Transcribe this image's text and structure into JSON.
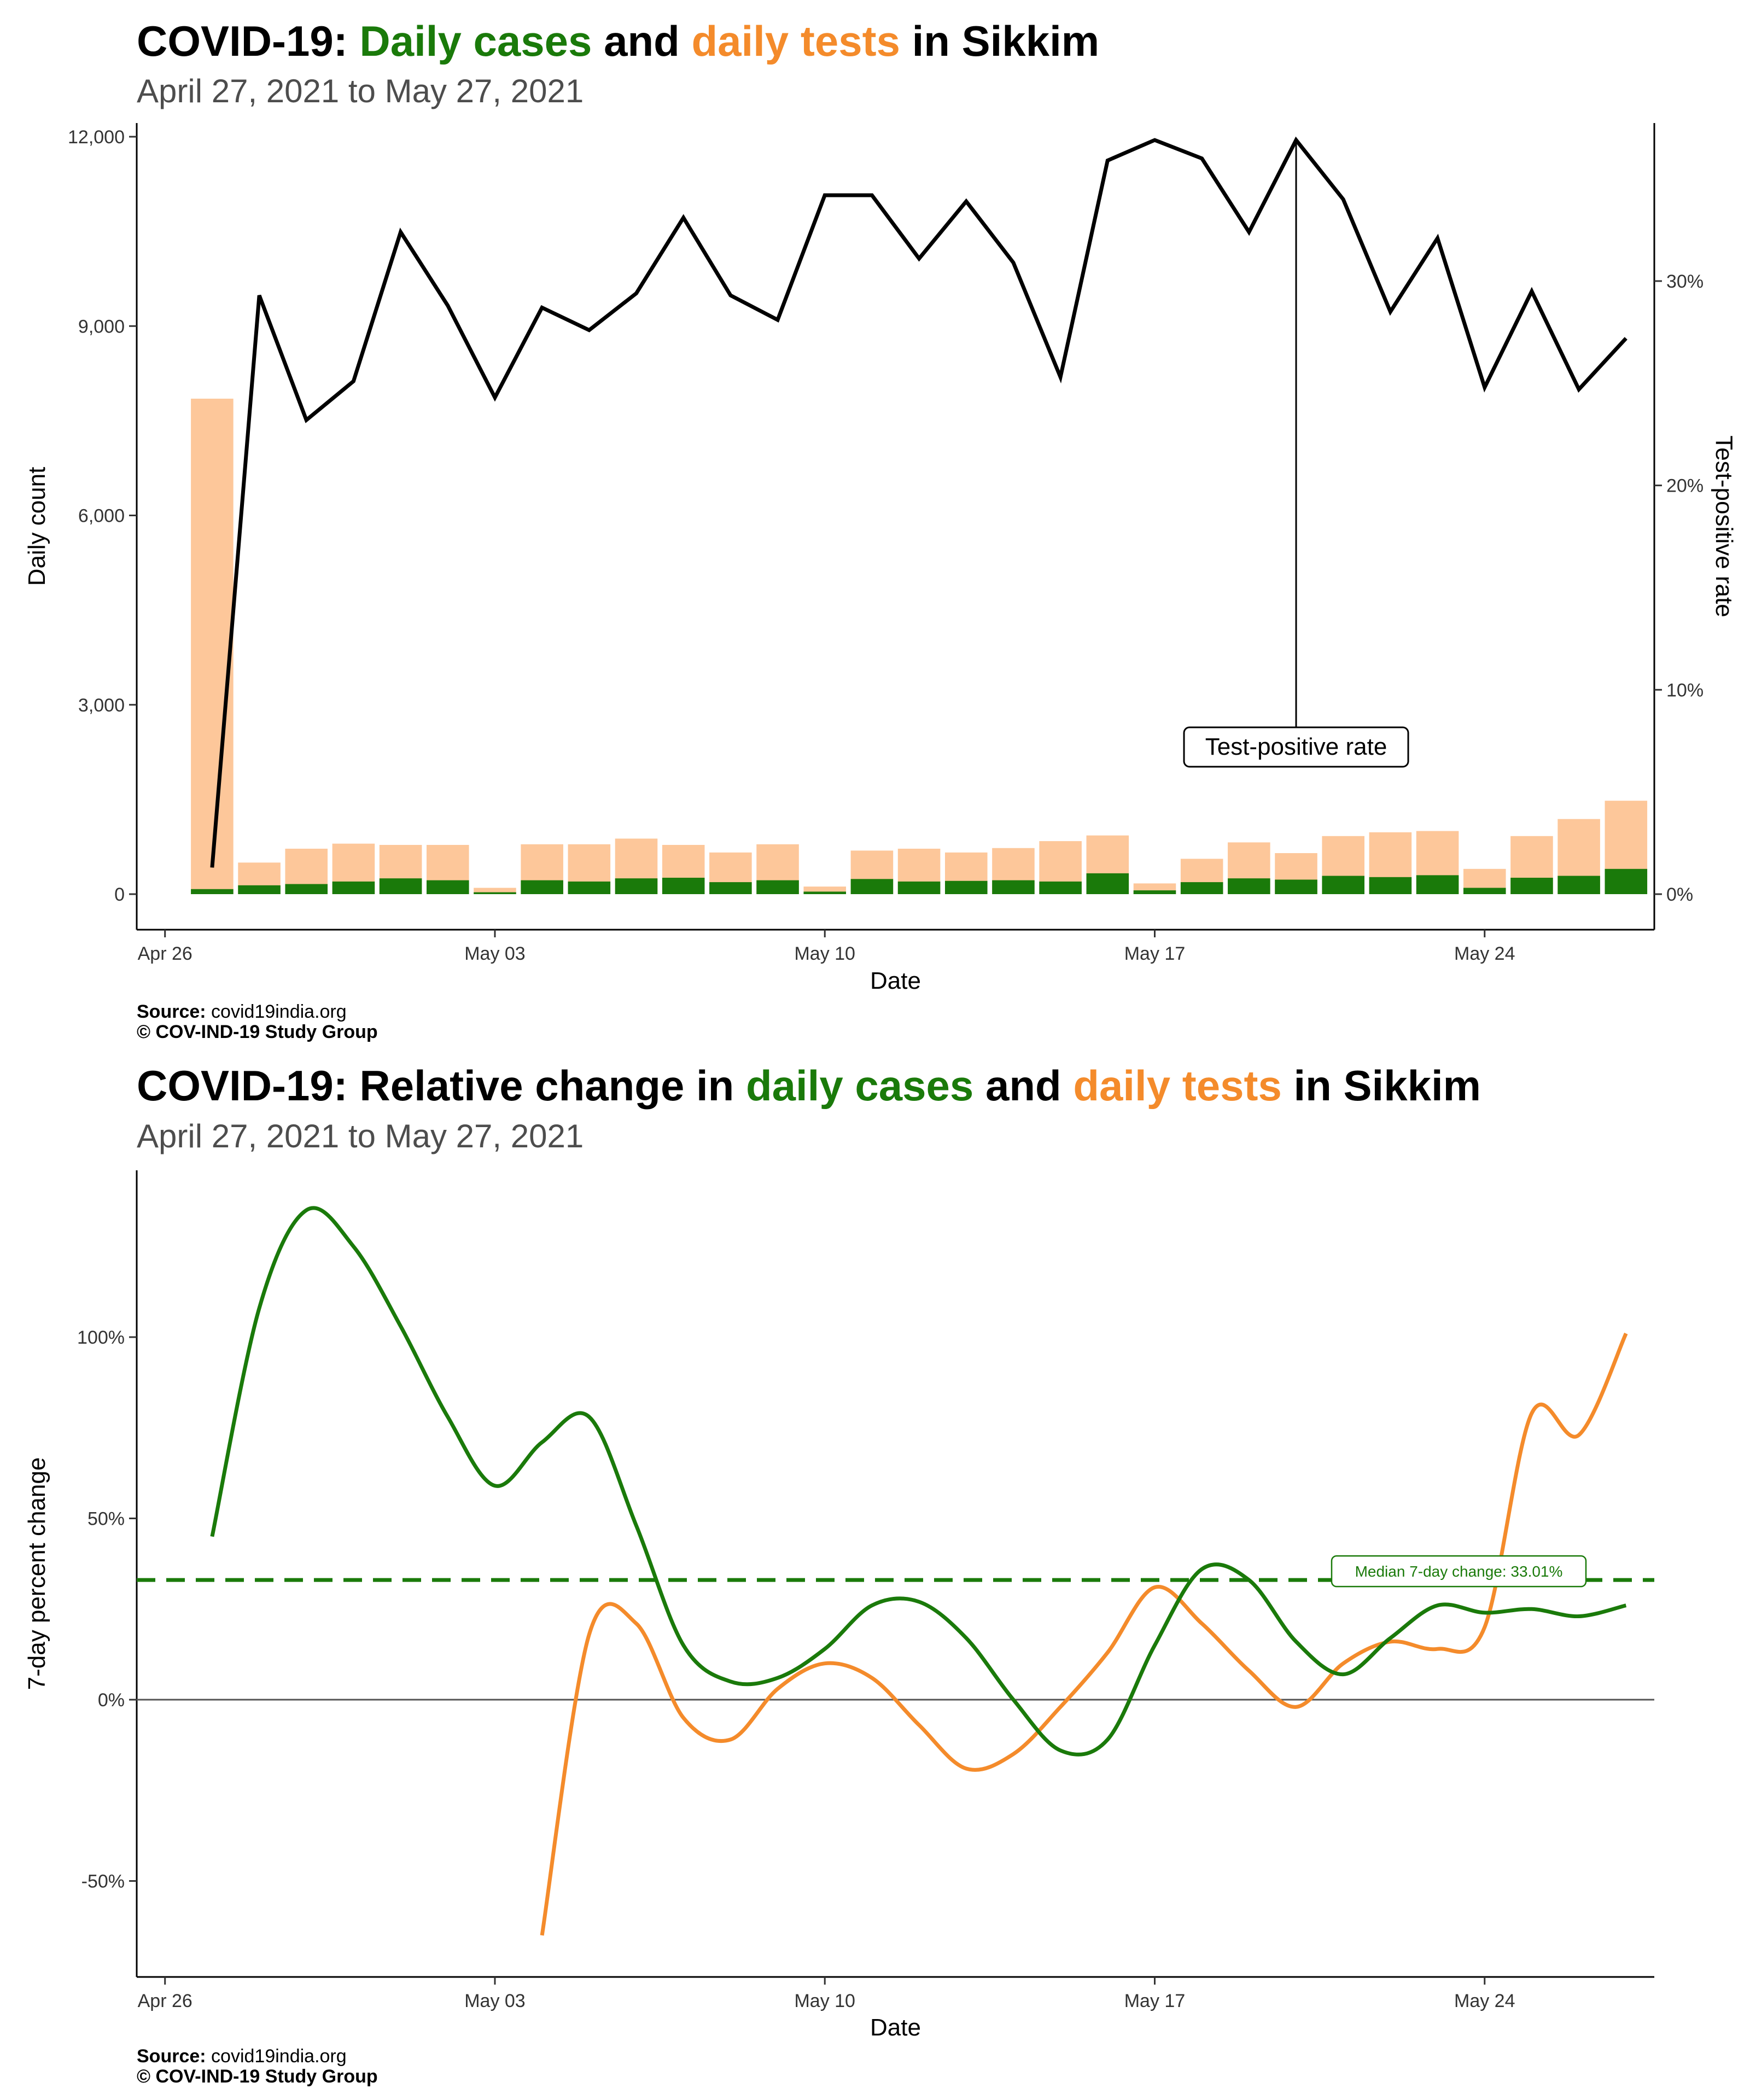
{
  "chart1": {
    "title_prefix": "COVID-19: ",
    "title_cases": "Daily cases",
    "title_and": " and ",
    "title_tests": "daily tests",
    "title_suffix": " in Sikkim",
    "subtitle": "April 27, 2021 to May 27, 2021",
    "source_label": "Source:",
    "source_value": " covid19india.org",
    "copyright": "© COV-IND-19 Study Group"
  },
  "chart2": {
    "title_prefix": "COVID-19: Relative change in ",
    "title_cases": "daily cases",
    "title_and": " and ",
    "title_tests": "daily tests",
    "title_suffix": " in Sikkim",
    "subtitle": "April 27, 2021 to May 27, 2021",
    "source_label": "Source:",
    "source_value": " covid19india.org",
    "copyright": "© COV-IND-19 Study Group"
  },
  "colors": {
    "cases": "#1a7a0a",
    "tests_bar": "#fdc79a",
    "tests_line": "#f48b2b",
    "rate_line": "#000000"
  },
  "chart_data": [
    {
      "type": "bar",
      "xlabel": "Date",
      "ylabel": "Daily count",
      "y2label": "Test-positive rate",
      "ylim": [
        0,
        12000
      ],
      "y2lim": [
        0,
        38
      ],
      "y_ticks": [
        "0",
        "3,000",
        "6,000",
        "9,000",
        "12,000"
      ],
      "y2_ticks": [
        "0%",
        "10%",
        "20%",
        "30%"
      ],
      "x_ticks": [
        "Apr 26",
        "May 03",
        "May 10",
        "May 17",
        "May 24"
      ],
      "annotation": "Test-positive rate",
      "annotation_date": "2021-05-20",
      "dates": [
        "2021-04-27",
        "2021-04-28",
        "2021-04-29",
        "2021-04-30",
        "2021-05-01",
        "2021-05-02",
        "2021-05-03",
        "2021-05-04",
        "2021-05-05",
        "2021-05-06",
        "2021-05-07",
        "2021-05-08",
        "2021-05-09",
        "2021-05-10",
        "2021-05-11",
        "2021-05-12",
        "2021-05-13",
        "2021-05-14",
        "2021-05-15",
        "2021-05-16",
        "2021-05-17",
        "2021-05-18",
        "2021-05-19",
        "2021-05-20",
        "2021-05-21",
        "2021-05-22",
        "2021-05-23",
        "2021-05-24",
        "2021-05-25",
        "2021-05-26",
        "2021-05-27"
      ],
      "series": [
        {
          "name": "Daily tests",
          "values": [
            7850,
            500,
            720,
            800,
            780,
            780,
            100,
            790,
            790,
            880,
            780,
            660,
            790,
            120,
            690,
            720,
            660,
            730,
            840,
            930,
            170,
            560,
            820,
            650,
            920,
            980,
            1000,
            400,
            920,
            1190,
            1480
          ]
        },
        {
          "name": "Daily cases",
          "values": [
            80,
            140,
            160,
            200,
            250,
            220,
            30,
            220,
            200,
            250,
            260,
            190,
            220,
            40,
            240,
            200,
            210,
            220,
            200,
            330,
            60,
            190,
            250,
            230,
            290,
            270,
            300,
            100,
            260,
            290,
            400
          ]
        },
        {
          "name": "Test-positive rate",
          "values": [
            1.3,
            29.3,
            23.2,
            25.1,
            32.4,
            28.8,
            24.3,
            28.7,
            27.6,
            29.4,
            33.1,
            29.3,
            28.1,
            34.2,
            34.2,
            31.1,
            33.9,
            30.9,
            25.3,
            35.9,
            36.9,
            36.0,
            32.4,
            36.9,
            34.0,
            28.5,
            32.1,
            24.8,
            29.5,
            24.7,
            27.2
          ]
        }
      ]
    },
    {
      "type": "line",
      "xlabel": "Date",
      "ylabel": "7-day percent change",
      "ylim": [
        -75,
        147
      ],
      "y_ticks": [
        "-50%",
        "0%",
        "50%",
        "100%"
      ],
      "x_ticks": [
        "Apr 26",
        "May 03",
        "May 10",
        "May 17",
        "May 24"
      ],
      "median_label": "Median 7-day change: 33.01%",
      "median_value": 33.01,
      "series": [
        {
          "name": "Daily cases",
          "dates": [
            "2021-04-27",
            "2021-04-28",
            "2021-04-29",
            "2021-04-30",
            "2021-05-01",
            "2021-05-02",
            "2021-05-03",
            "2021-05-04",
            "2021-05-05",
            "2021-05-06",
            "2021-05-07",
            "2021-05-08",
            "2021-05-09",
            "2021-05-10",
            "2021-05-11",
            "2021-05-12",
            "2021-05-13",
            "2021-05-14",
            "2021-05-15",
            "2021-05-16",
            "2021-05-17",
            "2021-05-18",
            "2021-05-19",
            "2021-05-20",
            "2021-05-21",
            "2021-05-22",
            "2021-05-23",
            "2021-05-24",
            "2021-05-25",
            "2021-05-26",
            "2021-05-27"
          ],
          "values": [
            45,
            108,
            135,
            125,
            103,
            78,
            59,
            71,
            78,
            48,
            15,
            5,
            6,
            14,
            26,
            27,
            17,
            0,
            -14,
            -11,
            15,
            36,
            33,
            16,
            7,
            17,
            26,
            24,
            25,
            23,
            26
          ]
        },
        {
          "name": "Daily tests",
          "dates": [
            "2021-05-04",
            "2021-05-05",
            "2021-05-06",
            "2021-05-07",
            "2021-05-08",
            "2021-05-09",
            "2021-05-10",
            "2021-05-11",
            "2021-05-12",
            "2021-05-13",
            "2021-05-14",
            "2021-05-15",
            "2021-05-16",
            "2021-05-17",
            "2021-05-18",
            "2021-05-19",
            "2021-05-20",
            "2021-05-21",
            "2021-05-22",
            "2021-05-23",
            "2021-05-24",
            "2021-05-25",
            "2021-05-26",
            "2021-05-27"
          ],
          "values": [
            -65,
            18,
            21,
            -5,
            -11,
            3,
            10,
            6,
            -7,
            -19,
            -15,
            -2,
            13,
            31,
            21,
            8,
            -2,
            10,
            16,
            14,
            20,
            79,
            73,
            101
          ]
        }
      ]
    }
  ]
}
